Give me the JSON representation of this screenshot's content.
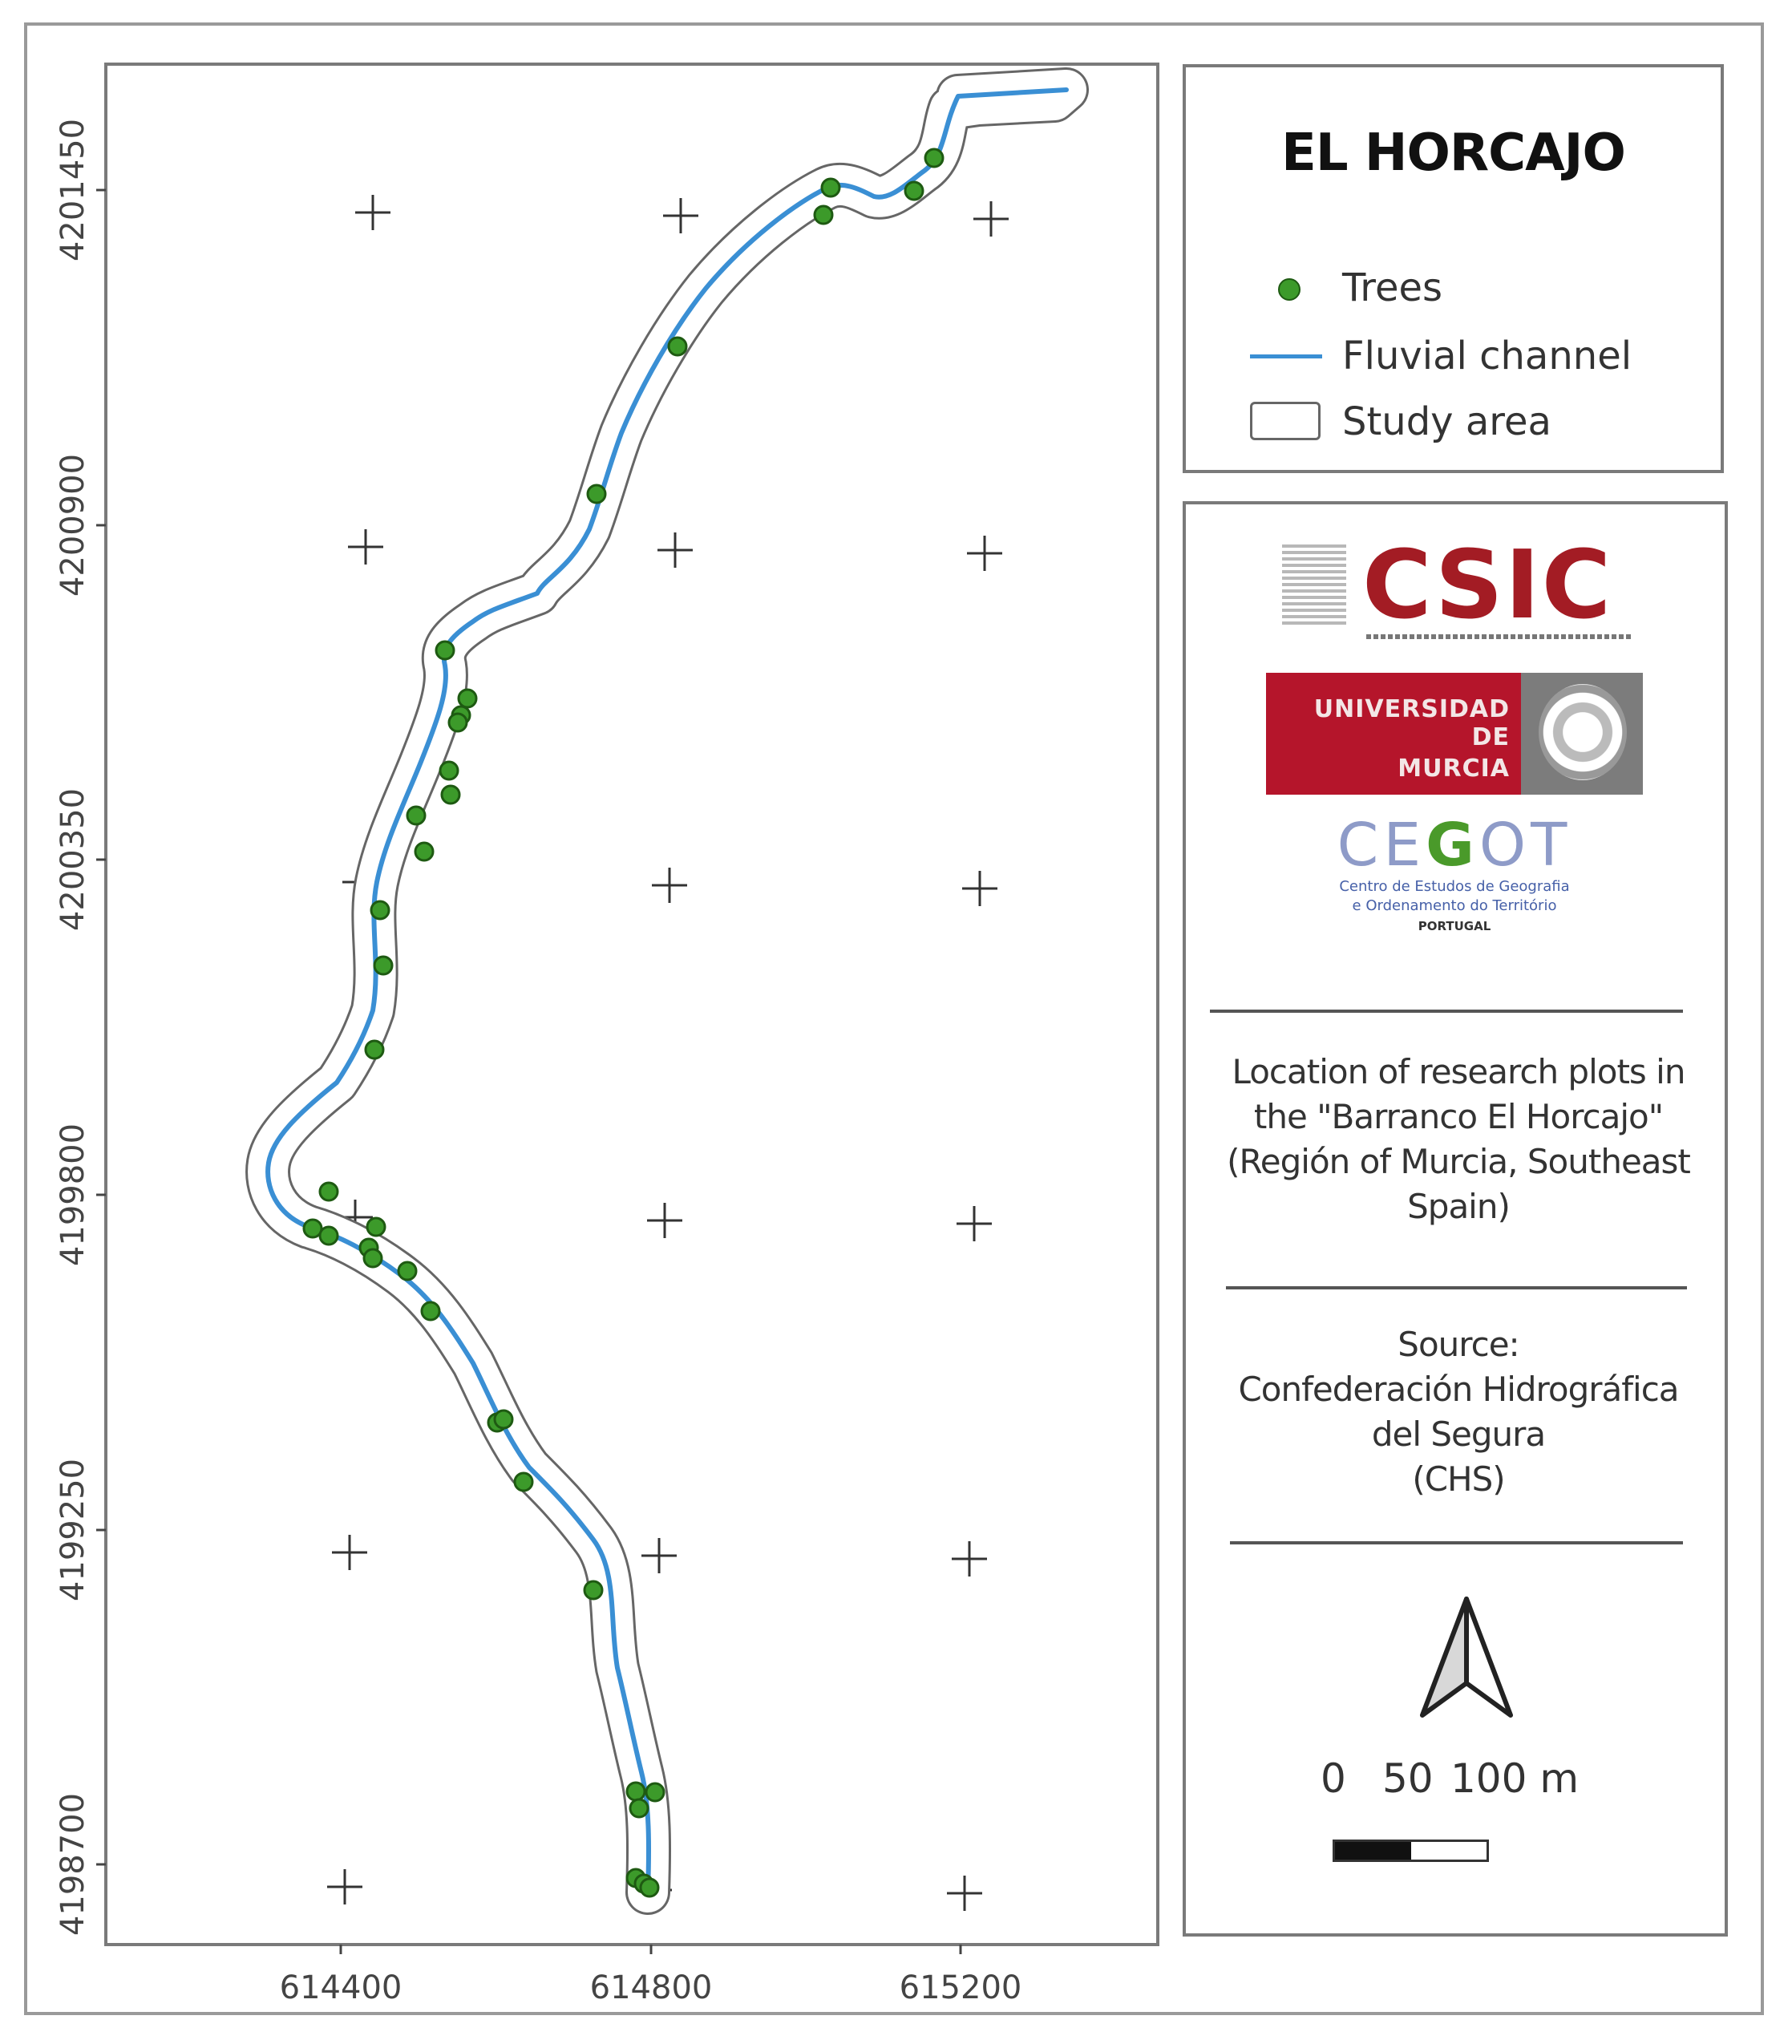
{
  "map": {
    "y_axis_labels": [
      "4201450",
      "4200900",
      "4200350",
      "4199800",
      "4199250",
      "4198700"
    ],
    "x_axis_labels": [
      "614400",
      "614800",
      "615200"
    ]
  },
  "legend": {
    "title": "EL HORCAJO",
    "items": [
      {
        "label": "Trees",
        "symbol": "tree-point"
      },
      {
        "label": "Fluvial channel",
        "symbol": "channel-line"
      },
      {
        "label": "Study area",
        "symbol": "study-area-polygon"
      }
    ]
  },
  "logos": {
    "csic": "CSIC",
    "um_line1": "UNIVERSIDAD DE",
    "um_line2": "MURCIA",
    "cegot_prefix": "CE",
    "cegot_g": "G",
    "cegot_suffix": "OT",
    "cegot_sub1": "Centro de Estudos de Geografia",
    "cegot_sub2": "e Ordenamento do Território",
    "cegot_sub3": "PORTUGAL"
  },
  "description": {
    "line1": "Location of research plots in",
    "line2": "the \"Barranco El Horcajo\"",
    "line3": "(Región of Murcia, Southeast",
    "line4": "Spain)"
  },
  "source": {
    "line1": "Source:",
    "line2": "Confederación Hidrográfica",
    "line3": "del Segura",
    "line4": "(CHS)"
  },
  "scale": {
    "label_0": "0",
    "label_50": "50",
    "label_100": "100 m"
  },
  "colors": {
    "channel": "#3a8fd4",
    "trees": "#3c9a2a",
    "study_area_outline": "#666666",
    "csic_red": "#a31c24",
    "um_red": "#b5152b"
  }
}
